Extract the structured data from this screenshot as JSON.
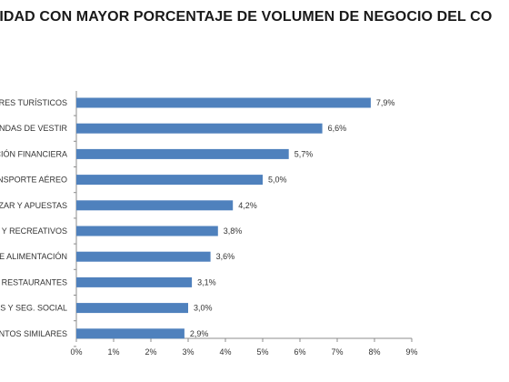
{
  "chart_data": {
    "type": "bar",
    "orientation": "horizontal",
    "title": "IVIDAD CON MAYOR PORCENTAJE DE VOLUMEN DE NEGOCIO DEL CO",
    "categories": [
      "ORES TURÍSTICOS",
      "ENDAS DE VESTIR",
      "ACIÓN FINANCIERA",
      "ANSPORTE AÉREO",
      "AZAR Y APUESTAS",
      "S Y RECREATIVOS",
      "DE ALIMENTACIÓN",
      "RESTAURANTES",
      "OS Y SEG. SOCIAL",
      "ENTOS SIMILARES"
    ],
    "values": [
      7.9,
      6.6,
      5.7,
      5.0,
      4.2,
      3.8,
      3.6,
      3.1,
      3.0,
      2.9
    ],
    "value_labels": [
      "7,9%",
      "6,6%",
      "5,7%",
      "5,0%",
      "4,2%",
      "3,8%",
      "3,6%",
      "3,1%",
      "3,0%",
      "2,9%"
    ],
    "xlim": [
      0,
      9
    ],
    "x_ticks": [
      "0%",
      "1%",
      "2%",
      "3%",
      "4%",
      "5%",
      "6%",
      "7%",
      "8%",
      "9%"
    ],
    "bar_color": "#4f81bd",
    "axis_color": "#8c8c8c",
    "grid": false,
    "legend": "none"
  }
}
